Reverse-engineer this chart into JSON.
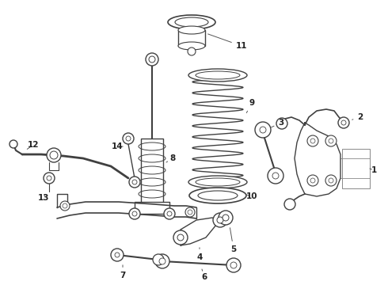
{
  "bg_color": "#ffffff",
  "lc": "#404040",
  "figsize": [
    4.9,
    3.6
  ],
  "dpi": 100,
  "xlim": [
    0,
    490
  ],
  "ylim": [
    0,
    360
  ]
}
